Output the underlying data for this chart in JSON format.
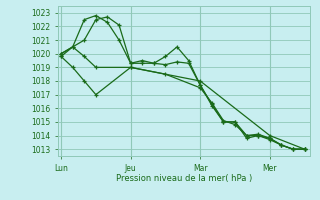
{
  "title": "Pression niveau de la mer( hPa )",
  "background_color": "#c8eef0",
  "grid_color": "#90c8b8",
  "line_color": "#1a6b1a",
  "ylim": [
    1012.5,
    1023.5
  ],
  "yticks": [
    1013,
    1014,
    1015,
    1016,
    1017,
    1018,
    1019,
    1020,
    1021,
    1022,
    1023
  ],
  "xtick_labels": [
    "Lun",
    "Jeu",
    "Mar",
    "Mer"
  ],
  "xtick_positions": [
    0,
    6,
    12,
    18
  ],
  "vline_positions": [
    0,
    6,
    12,
    18
  ],
  "xlim": [
    -0.3,
    21.5
  ],
  "series": [
    {
      "x": [
        0,
        1,
        2,
        3,
        4,
        5,
        6,
        7,
        8,
        9,
        10,
        11,
        12,
        13,
        14,
        15,
        16,
        17,
        18,
        19,
        20,
        21
      ],
      "y": [
        1020,
        1020.5,
        1022.5,
        1022.8,
        1022.3,
        1021.0,
        1019.3,
        1019.5,
        1019.3,
        1019.8,
        1020.5,
        1019.5,
        1017.7,
        1016.3,
        1015.0,
        1015.0,
        1014.0,
        1014.0,
        1013.8,
        1013.3,
        1013.0,
        1013.0
      ],
      "marker": "+"
    },
    {
      "x": [
        0,
        2,
        3,
        4,
        5,
        6,
        7,
        8,
        9,
        10,
        11,
        12,
        13,
        14,
        15,
        16,
        17,
        18,
        19,
        20,
        21
      ],
      "y": [
        1020,
        1021.0,
        1022.5,
        1022.7,
        1022.1,
        1019.3,
        1019.3,
        1019.3,
        1019.2,
        1019.4,
        1019.3,
        1017.7,
        1016.2,
        1015.0,
        1015.0,
        1013.8,
        1014.0,
        1013.7,
        1013.3,
        1013.0,
        1013.0
      ],
      "marker": "+"
    },
    {
      "x": [
        0,
        1,
        2,
        3,
        6,
        12,
        18,
        21
      ],
      "y": [
        1019.8,
        1020.5,
        1019.8,
        1019.0,
        1019.0,
        1018.0,
        1014.0,
        1013.0
      ],
      "marker": "+"
    },
    {
      "x": [
        0,
        1,
        2,
        3,
        6,
        9,
        12,
        13,
        14,
        15,
        16,
        17,
        18,
        19,
        20,
        21
      ],
      "y": [
        1019.8,
        1019.0,
        1018.0,
        1017.0,
        1019.0,
        1018.5,
        1017.5,
        1016.4,
        1015.1,
        1014.8,
        1014.0,
        1014.1,
        1013.8,
        1013.3,
        1013.0,
        1013.0
      ],
      "marker": "+"
    }
  ]
}
